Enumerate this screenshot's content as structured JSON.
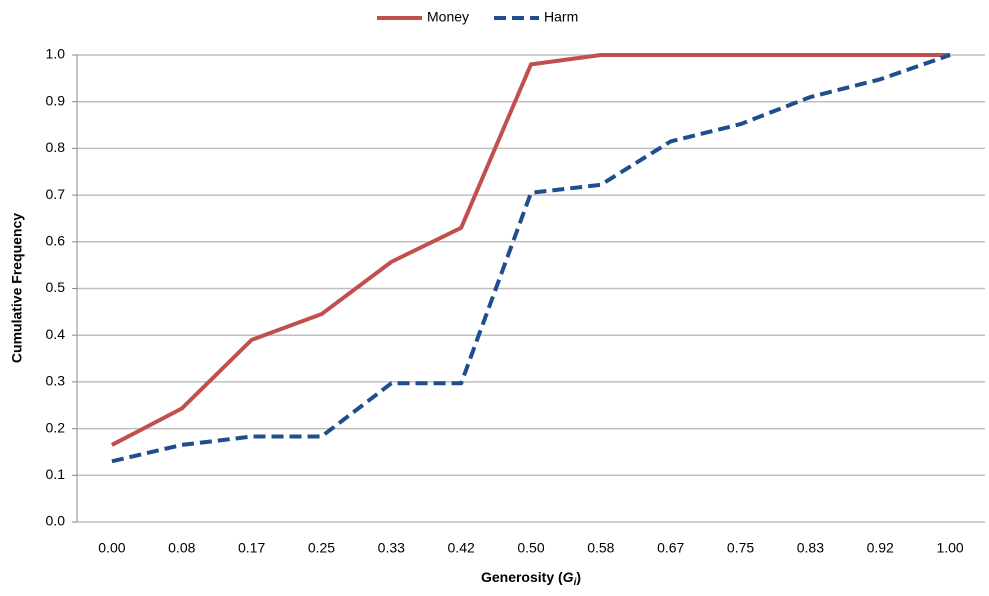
{
  "chart_data": {
    "type": "line",
    "x_label": [
      "Generosity (",
      "G",
      "i",
      ")"
    ],
    "y_label": "Cumulative Frequency",
    "categories": [
      "0.00",
      "0.08",
      "0.17",
      "0.25",
      "0.33",
      "0.42",
      "0.50",
      "0.58",
      "0.67",
      "0.75",
      "0.83",
      "0.92",
      "1.00"
    ],
    "series": [
      {
        "name": "Money",
        "color": "#c0504d",
        "dashed": false,
        "values": [
          0.165,
          0.243,
          0.39,
          0.445,
          0.557,
          0.63,
          0.98,
          1.0,
          1.0,
          1.0,
          1.0,
          1.0,
          1.0
        ]
      },
      {
        "name": "Harm",
        "color": "#1f4e8c",
        "dashed": true,
        "values": [
          0.13,
          0.165,
          0.183,
          0.183,
          0.297,
          0.297,
          0.705,
          0.722,
          0.815,
          0.852,
          0.91,
          0.948,
          1.0
        ]
      }
    ],
    "ylim": [
      0,
      1
    ],
    "yticks": [
      {
        "value": 0,
        "label": "0.0"
      },
      0.1,
      0.2,
      0.3,
      0.4,
      0.5,
      0.6,
      0.7,
      0.8,
      0.9,
      {
        "value": 1,
        "label": "1.0"
      }
    ],
    "grid": true,
    "legend": "top"
  }
}
